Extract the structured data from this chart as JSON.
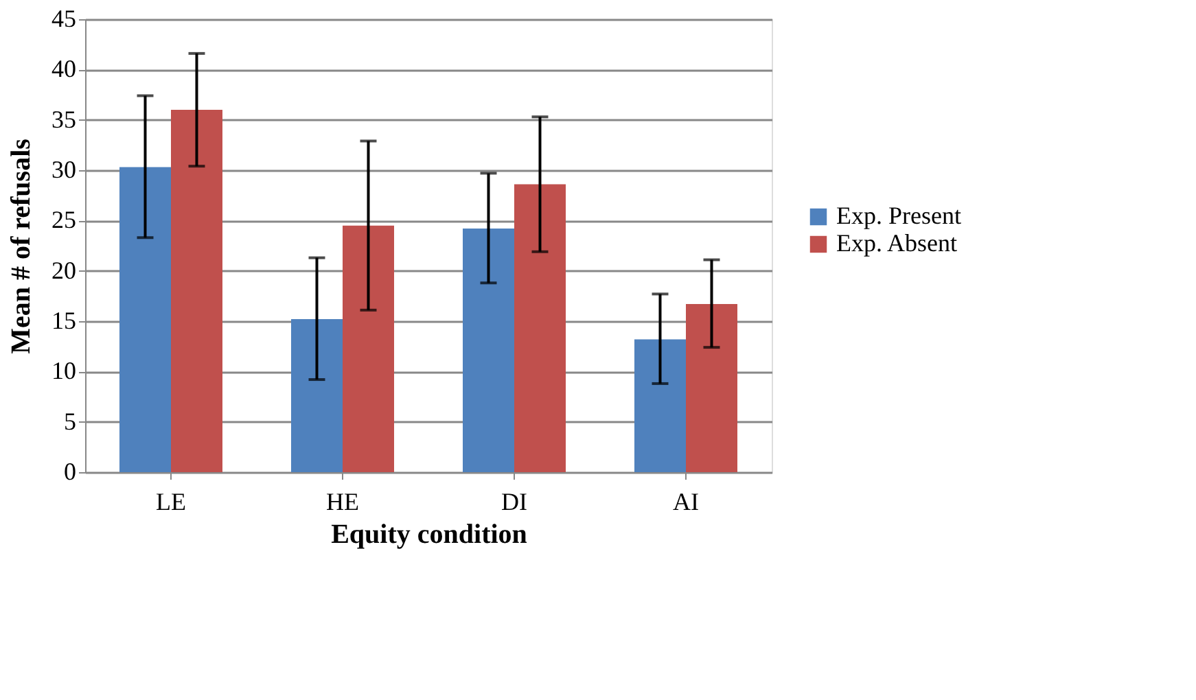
{
  "chart_data": {
    "type": "bar",
    "xlabel": "Equity condition",
    "ylabel": "Mean # of refusals",
    "categories": [
      "LE",
      "HE",
      "DI",
      "AI"
    ],
    "series": [
      {
        "name": "Exp. Present",
        "color": "#4f81bd",
        "values": [
          30.3,
          15.2,
          24.2,
          13.2
        ],
        "errors": [
          [
            23.3,
            37.4
          ],
          [
            9.2,
            21.3
          ],
          [
            18.8,
            29.7
          ],
          [
            8.8,
            17.7
          ]
        ]
      },
      {
        "name": "Exp. Absent",
        "color": "#c0504d",
        "values": [
          36.0,
          24.5,
          28.6,
          16.7
        ],
        "errors": [
          [
            30.4,
            41.6
          ],
          [
            16.1,
            32.9
          ],
          [
            21.9,
            35.3
          ],
          [
            12.4,
            21.1
          ]
        ]
      }
    ],
    "ylim": [
      0,
      45
    ],
    "yticks": [
      0,
      5,
      10,
      15,
      20,
      25,
      30,
      35,
      40,
      45
    ],
    "grid": "y",
    "legend": "right"
  }
}
